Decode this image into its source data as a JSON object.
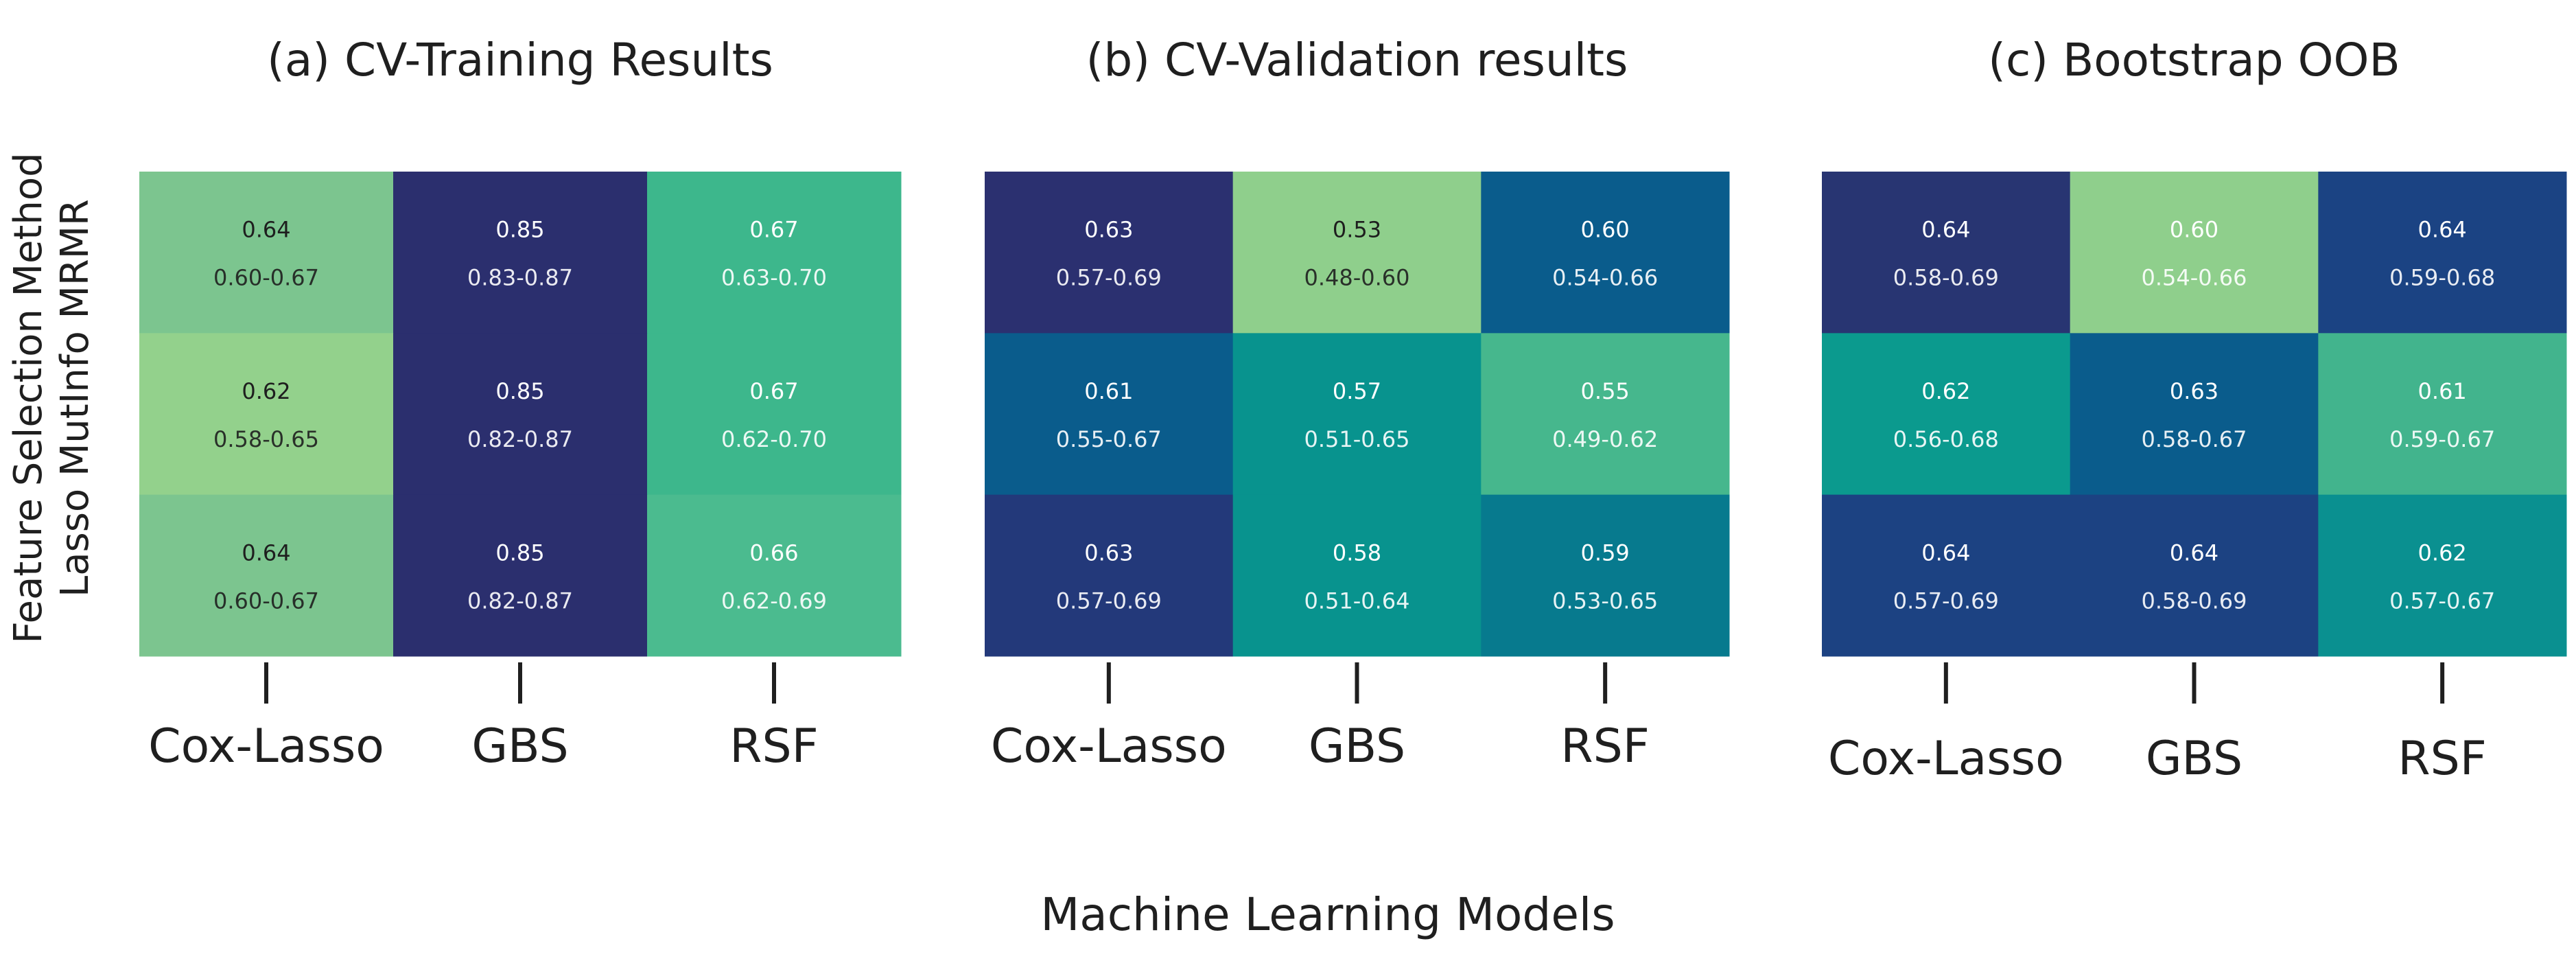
{
  "chart_data": [
    {
      "type": "heatmap",
      "title": "(a) CV-Training Results",
      "columns": [
        "Cox-Lasso",
        "GBS",
        "RSF"
      ],
      "rows": [
        "MRMR",
        "MutInfo",
        "Lasso"
      ],
      "values": [
        [
          0.64,
          0.85,
          0.67
        ],
        [
          0.62,
          0.85,
          0.67
        ],
        [
          0.64,
          0.85,
          0.66
        ]
      ],
      "ci": [
        [
          "0.60-0.67",
          "0.83-0.87",
          "0.63-0.70"
        ],
        [
          "0.58-0.65",
          "0.82-0.87",
          "0.62-0.70"
        ],
        [
          "0.60-0.67",
          "0.82-0.87",
          "0.62-0.69"
        ]
      ],
      "colors": [
        [
          "#7cc58f",
          "#2b2f6e",
          "#3db78c"
        ],
        [
          "#93d18c",
          "#2b2f6e",
          "#3db78c"
        ],
        [
          "#7cc58f",
          "#2b2f6e",
          "#4bbb8f"
        ]
      ],
      "text_colors": [
        [
          "#1e1e1e",
          "#ffffff",
          "#ffffff"
        ],
        [
          "#1e1e1e",
          "#ffffff",
          "#ffffff"
        ],
        [
          "#1e1e1e",
          "#ffffff",
          "#ffffff"
        ]
      ]
    },
    {
      "type": "heatmap",
      "title": "(b) CV-Validation results",
      "columns": [
        "Cox-Lasso",
        "GBS",
        "RSF"
      ],
      "rows": [
        "MRMR",
        "MutInfo",
        "Lasso"
      ],
      "values": [
        [
          0.63,
          0.53,
          0.6
        ],
        [
          0.61,
          0.57,
          0.55
        ],
        [
          0.63,
          0.58,
          0.59
        ]
      ],
      "ci": [
        [
          "0.57-0.69",
          "0.48-0.60",
          "0.54-0.66"
        ],
        [
          "0.55-0.67",
          "0.51-0.65",
          "0.49-0.62"
        ],
        [
          "0.57-0.69",
          "0.51-0.64",
          "0.53-0.65"
        ]
      ],
      "colors": [
        [
          "#2b3070",
          "#8fcf8c",
          "#0a5c8c"
        ],
        [
          "#0a5c8c",
          "#08938e",
          "#46b78d"
        ],
        [
          "#23397a",
          "#08938e",
          "#077a8e"
        ]
      ],
      "text_colors": [
        [
          "#ffffff",
          "#1e1e1e",
          "#ffffff"
        ],
        [
          "#ffffff",
          "#ffffff",
          "#ffffff"
        ],
        [
          "#ffffff",
          "#ffffff",
          "#ffffff"
        ]
      ]
    },
    {
      "type": "heatmap",
      "title": "(c) Bootstrap OOB",
      "columns": [
        "Cox-Lasso",
        "GBS",
        "RSF"
      ],
      "rows": [
        "MRMR",
        "MutInfo",
        "Lasso"
      ],
      "values": [
        [
          0.64,
          0.6,
          0.64
        ],
        [
          0.62,
          0.63,
          0.61
        ],
        [
          0.64,
          0.64,
          0.62
        ]
      ],
      "ci": [
        [
          "0.58-0.69",
          "0.54-0.66",
          "0.59-0.68"
        ],
        [
          "0.56-0.68",
          "0.58-0.67",
          "0.59-0.67"
        ],
        [
          "0.57-0.69",
          "0.58-0.69",
          "0.57-0.67"
        ]
      ],
      "colors": [
        [
          "#283572",
          "#8fcf8c",
          "#1b4383"
        ],
        [
          "#0b9a8e",
          "#0a5c8c",
          "#42b48d"
        ],
        [
          "#1c4282",
          "#1c4282",
          "#0a9090"
        ]
      ],
      "text_colors": [
        [
          "#ffffff",
          "#ffffff",
          "#ffffff"
        ],
        [
          "#ffffff",
          "#ffffff",
          "#ffffff"
        ],
        [
          "#ffffff",
          "#ffffff",
          "#ffffff"
        ]
      ]
    }
  ],
  "ylabel_line1": "Feature Selection Method",
  "ylabel_line2": "Lasso MutInfo MRMR",
  "xlabel": "Machine Learning Models"
}
